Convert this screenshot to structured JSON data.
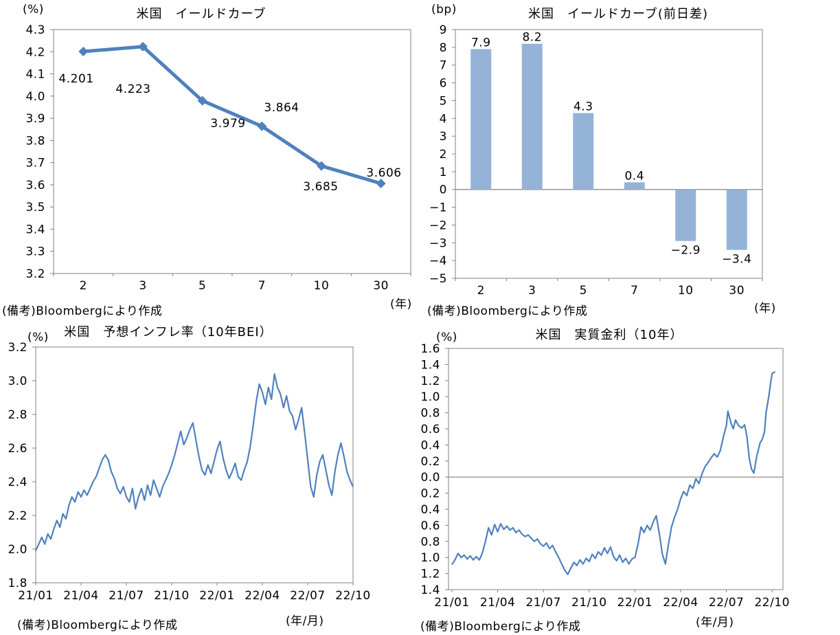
{
  "colors": {
    "line": "#4F81BD",
    "bar": "#95B3D7",
    "axis": "#808080",
    "text": "#000000",
    "background": "#FFFFFF"
  },
  "chart_data": [
    {
      "id": "us-yield-curve",
      "type": "line",
      "title": "米国　イールドカーブ",
      "y_unit": "(%)",
      "x_unit": "(年)",
      "note": "(備考)Bloombergにより作成",
      "categories": [
        "2",
        "3",
        "5",
        "7",
        "10",
        "30"
      ],
      "values": [
        4.201,
        4.223,
        3.979,
        3.864,
        3.685,
        3.606
      ],
      "data_labels": [
        "4.201",
        "4.223",
        "3.979",
        "3.864",
        "3.685",
        "3.606"
      ],
      "ylim": [
        3.2,
        4.3
      ],
      "ytick_step": 0.1,
      "grid": false,
      "legend": "none",
      "marker": "diamond"
    },
    {
      "id": "us-yield-curve-change",
      "type": "bar",
      "title": "米国　イールドカーブ(前日差)",
      "y_unit": "(bp)",
      "x_unit": "(年)",
      "note": "(備考)Bloombergにより作成",
      "categories": [
        "2",
        "3",
        "5",
        "7",
        "10",
        "30"
      ],
      "values": [
        7.9,
        8.2,
        4.3,
        0.4,
        -2.9,
        -3.4
      ],
      "data_labels": [
        "7.9",
        "8.2",
        "4.3",
        "0.4",
        "−2.9",
        "−3.4"
      ],
      "ylim": [
        -5,
        9
      ],
      "ytick_step": 1,
      "grid": false,
      "legend": "none",
      "zero_line": true
    },
    {
      "id": "us-bei-10y",
      "type": "line",
      "title": "米国　予想インフレ率（10年BEI）",
      "y_unit": "(%)",
      "x_unit": "(年/月)",
      "note": "(備考)Bloombergにより作成",
      "x_tick_labels": [
        "21/01",
        "21/04",
        "21/07",
        "21/10",
        "22/01",
        "22/04",
        "22/07",
        "22/10"
      ],
      "x_range_months": [
        0,
        21
      ],
      "ylim": [
        1.8,
        3.2
      ],
      "ytick_step": 0.2,
      "grid": false,
      "legend": "none",
      "zero_line": false,
      "points": [
        [
          0,
          1.99
        ],
        [
          0.2,
          2.03
        ],
        [
          0.4,
          2.07
        ],
        [
          0.6,
          2.03
        ],
        [
          0.8,
          2.09
        ],
        [
          1,
          2.06
        ],
        [
          1.2,
          2.12
        ],
        [
          1.4,
          2.17
        ],
        [
          1.6,
          2.13
        ],
        [
          1.8,
          2.21
        ],
        [
          2,
          2.18
        ],
        [
          2.2,
          2.26
        ],
        [
          2.4,
          2.31
        ],
        [
          2.6,
          2.28
        ],
        [
          2.8,
          2.34
        ],
        [
          3,
          2.31
        ],
        [
          3.2,
          2.35
        ],
        [
          3.4,
          2.32
        ],
        [
          3.6,
          2.36
        ],
        [
          3.8,
          2.4
        ],
        [
          4,
          2.43
        ],
        [
          4.2,
          2.48
        ],
        [
          4.4,
          2.53
        ],
        [
          4.6,
          2.56
        ],
        [
          4.8,
          2.53
        ],
        [
          5,
          2.46
        ],
        [
          5.2,
          2.42
        ],
        [
          5.4,
          2.36
        ],
        [
          5.6,
          2.33
        ],
        [
          5.8,
          2.37
        ],
        [
          6,
          2.31
        ],
        [
          6.2,
          2.28
        ],
        [
          6.4,
          2.36
        ],
        [
          6.6,
          2.24
        ],
        [
          6.8,
          2.31
        ],
        [
          7,
          2.36
        ],
        [
          7.2,
          2.29
        ],
        [
          7.4,
          2.38
        ],
        [
          7.6,
          2.32
        ],
        [
          7.8,
          2.41
        ],
        [
          8,
          2.36
        ],
        [
          8.2,
          2.31
        ],
        [
          8.4,
          2.37
        ],
        [
          8.6,
          2.41
        ],
        [
          8.8,
          2.45
        ],
        [
          9,
          2.5
        ],
        [
          9.2,
          2.56
        ],
        [
          9.4,
          2.63
        ],
        [
          9.6,
          2.7
        ],
        [
          9.8,
          2.62
        ],
        [
          10,
          2.66
        ],
        [
          10.2,
          2.71
        ],
        [
          10.4,
          2.75
        ],
        [
          10.6,
          2.65
        ],
        [
          10.8,
          2.55
        ],
        [
          11,
          2.47
        ],
        [
          11.2,
          2.44
        ],
        [
          11.4,
          2.5
        ],
        [
          11.6,
          2.45
        ],
        [
          11.8,
          2.52
        ],
        [
          12,
          2.59
        ],
        [
          12.2,
          2.64
        ],
        [
          12.4,
          2.54
        ],
        [
          12.6,
          2.47
        ],
        [
          12.8,
          2.42
        ],
        [
          13,
          2.46
        ],
        [
          13.2,
          2.51
        ],
        [
          13.4,
          2.43
        ],
        [
          13.6,
          2.41
        ],
        [
          13.8,
          2.47
        ],
        [
          14,
          2.52
        ],
        [
          14.2,
          2.61
        ],
        [
          14.4,
          2.74
        ],
        [
          14.6,
          2.88
        ],
        [
          14.8,
          2.98
        ],
        [
          15,
          2.93
        ],
        [
          15.2,
          2.86
        ],
        [
          15.4,
          2.96
        ],
        [
          15.6,
          2.89
        ],
        [
          15.8,
          3.04
        ],
        [
          16,
          2.96
        ],
        [
          16.2,
          2.92
        ],
        [
          16.4,
          2.84
        ],
        [
          16.6,
          2.91
        ],
        [
          16.8,
          2.82
        ],
        [
          17,
          2.79
        ],
        [
          17.2,
          2.71
        ],
        [
          17.4,
          2.77
        ],
        [
          17.6,
          2.84
        ],
        [
          17.8,
          2.69
        ],
        [
          18,
          2.53
        ],
        [
          18.2,
          2.37
        ],
        [
          18.4,
          2.31
        ],
        [
          18.6,
          2.44
        ],
        [
          18.8,
          2.52
        ],
        [
          19,
          2.56
        ],
        [
          19.2,
          2.47
        ],
        [
          19.4,
          2.38
        ],
        [
          19.6,
          2.32
        ],
        [
          19.8,
          2.46
        ],
        [
          20,
          2.56
        ],
        [
          20.2,
          2.63
        ],
        [
          20.4,
          2.55
        ],
        [
          20.6,
          2.46
        ],
        [
          20.8,
          2.41
        ],
        [
          21,
          2.37
        ]
      ]
    },
    {
      "id": "us-real-rate-10y",
      "type": "line",
      "title": "米国　実質金利（10年）",
      "y_unit": "(%)",
      "x_unit": "(年/月)",
      "note": "(備考)Bloombergにより作成",
      "x_tick_labels": [
        "21/01",
        "21/04",
        "21/07",
        "21/10",
        "22/01",
        "22/04",
        "22/07",
        "22/10"
      ],
      "x_range_months": [
        0,
        21.2
      ],
      "ylim": [
        -1.4,
        1.6
      ],
      "ytick_step": 0.2,
      "grid": false,
      "legend": "none",
      "zero_line": true,
      "points": [
        [
          0,
          -1.09
        ],
        [
          0.2,
          -1.03
        ],
        [
          0.4,
          -0.95
        ],
        [
          0.6,
          -1
        ],
        [
          0.8,
          -0.97
        ],
        [
          1,
          -1.02
        ],
        [
          1.2,
          -0.98
        ],
        [
          1.4,
          -1.03
        ],
        [
          1.6,
          -0.99
        ],
        [
          1.8,
          -1.03
        ],
        [
          2,
          -0.94
        ],
        [
          2.2,
          -0.8
        ],
        [
          2.4,
          -0.63
        ],
        [
          2.6,
          -0.72
        ],
        [
          2.8,
          -0.59
        ],
        [
          3,
          -0.68
        ],
        [
          3.2,
          -0.58
        ],
        [
          3.4,
          -0.65
        ],
        [
          3.6,
          -0.61
        ],
        [
          3.8,
          -0.66
        ],
        [
          4,
          -0.63
        ],
        [
          4.2,
          -0.69
        ],
        [
          4.4,
          -0.66
        ],
        [
          4.6,
          -0.71
        ],
        [
          4.8,
          -0.74
        ],
        [
          5,
          -0.72
        ],
        [
          5.2,
          -0.76
        ],
        [
          5.4,
          -0.8
        ],
        [
          5.6,
          -0.77
        ],
        [
          5.8,
          -0.83
        ],
        [
          6,
          -0.86
        ],
        [
          6.2,
          -0.82
        ],
        [
          6.4,
          -0.89
        ],
        [
          6.6,
          -0.85
        ],
        [
          6.8,
          -0.93
        ],
        [
          7,
          -1
        ],
        [
          7.2,
          -1.08
        ],
        [
          7.4,
          -1.16
        ],
        [
          7.6,
          -1.21
        ],
        [
          7.8,
          -1.13
        ],
        [
          8,
          -1.06
        ],
        [
          8.2,
          -1.1
        ],
        [
          8.4,
          -1.03
        ],
        [
          8.6,
          -1.08
        ],
        [
          8.8,
          -1.01
        ],
        [
          9,
          -1.05
        ],
        [
          9.2,
          -0.96
        ],
        [
          9.4,
          -1.01
        ],
        [
          9.6,
          -0.93
        ],
        [
          9.8,
          -0.97
        ],
        [
          10,
          -0.88
        ],
        [
          10.2,
          -0.95
        ],
        [
          10.4,
          -0.87
        ],
        [
          10.6,
          -0.99
        ],
        [
          10.8,
          -1.04
        ],
        [
          11,
          -0.97
        ],
        [
          11.2,
          -1.06
        ],
        [
          11.4,
          -1.01
        ],
        [
          11.6,
          -1.08
        ],
        [
          11.8,
          -1.02
        ],
        [
          12,
          -1
        ],
        [
          12.2,
          -0.84
        ],
        [
          12.4,
          -0.62
        ],
        [
          12.6,
          -0.69
        ],
        [
          12.8,
          -0.6
        ],
        [
          13,
          -0.66
        ],
        [
          13.2,
          -0.56
        ],
        [
          13.4,
          -0.48
        ],
        [
          13.6,
          -0.7
        ],
        [
          13.8,
          -0.96
        ],
        [
          14,
          -1.08
        ],
        [
          14.2,
          -0.84
        ],
        [
          14.4,
          -0.62
        ],
        [
          14.6,
          -0.5
        ],
        [
          14.8,
          -0.4
        ],
        [
          15,
          -0.27
        ],
        [
          15.2,
          -0.18
        ],
        [
          15.4,
          -0.23
        ],
        [
          15.6,
          -0.1
        ],
        [
          15.8,
          -0.14
        ],
        [
          16,
          -0.02
        ],
        [
          16.2,
          -0.08
        ],
        [
          16.4,
          0.04
        ],
        [
          16.6,
          0.13
        ],
        [
          16.8,
          0.18
        ],
        [
          17,
          0.24
        ],
        [
          17.2,
          0.29
        ],
        [
          17.4,
          0.25
        ],
        [
          17.6,
          0.33
        ],
        [
          17.8,
          0.5
        ],
        [
          18,
          0.64
        ],
        [
          18.1,
          0.82
        ],
        [
          18.3,
          0.67
        ],
        [
          18.45,
          0.6
        ],
        [
          18.6,
          0.71
        ],
        [
          18.8,
          0.64
        ],
        [
          19,
          0.61
        ],
        [
          19.2,
          0.65
        ],
        [
          19.35,
          0.5
        ],
        [
          19.5,
          0.23
        ],
        [
          19.65,
          0.1
        ],
        [
          19.8,
          0.05
        ],
        [
          20,
          0.27
        ],
        [
          20.1,
          0.34
        ],
        [
          20.2,
          0.42
        ],
        [
          20.35,
          0.47
        ],
        [
          20.5,
          0.56
        ],
        [
          20.6,
          0.8
        ],
        [
          20.7,
          0.91
        ],
        [
          20.8,
          1.03
        ],
        [
          20.9,
          1.17
        ],
        [
          21,
          1.29
        ],
        [
          21.2,
          1.31
        ]
      ]
    }
  ]
}
